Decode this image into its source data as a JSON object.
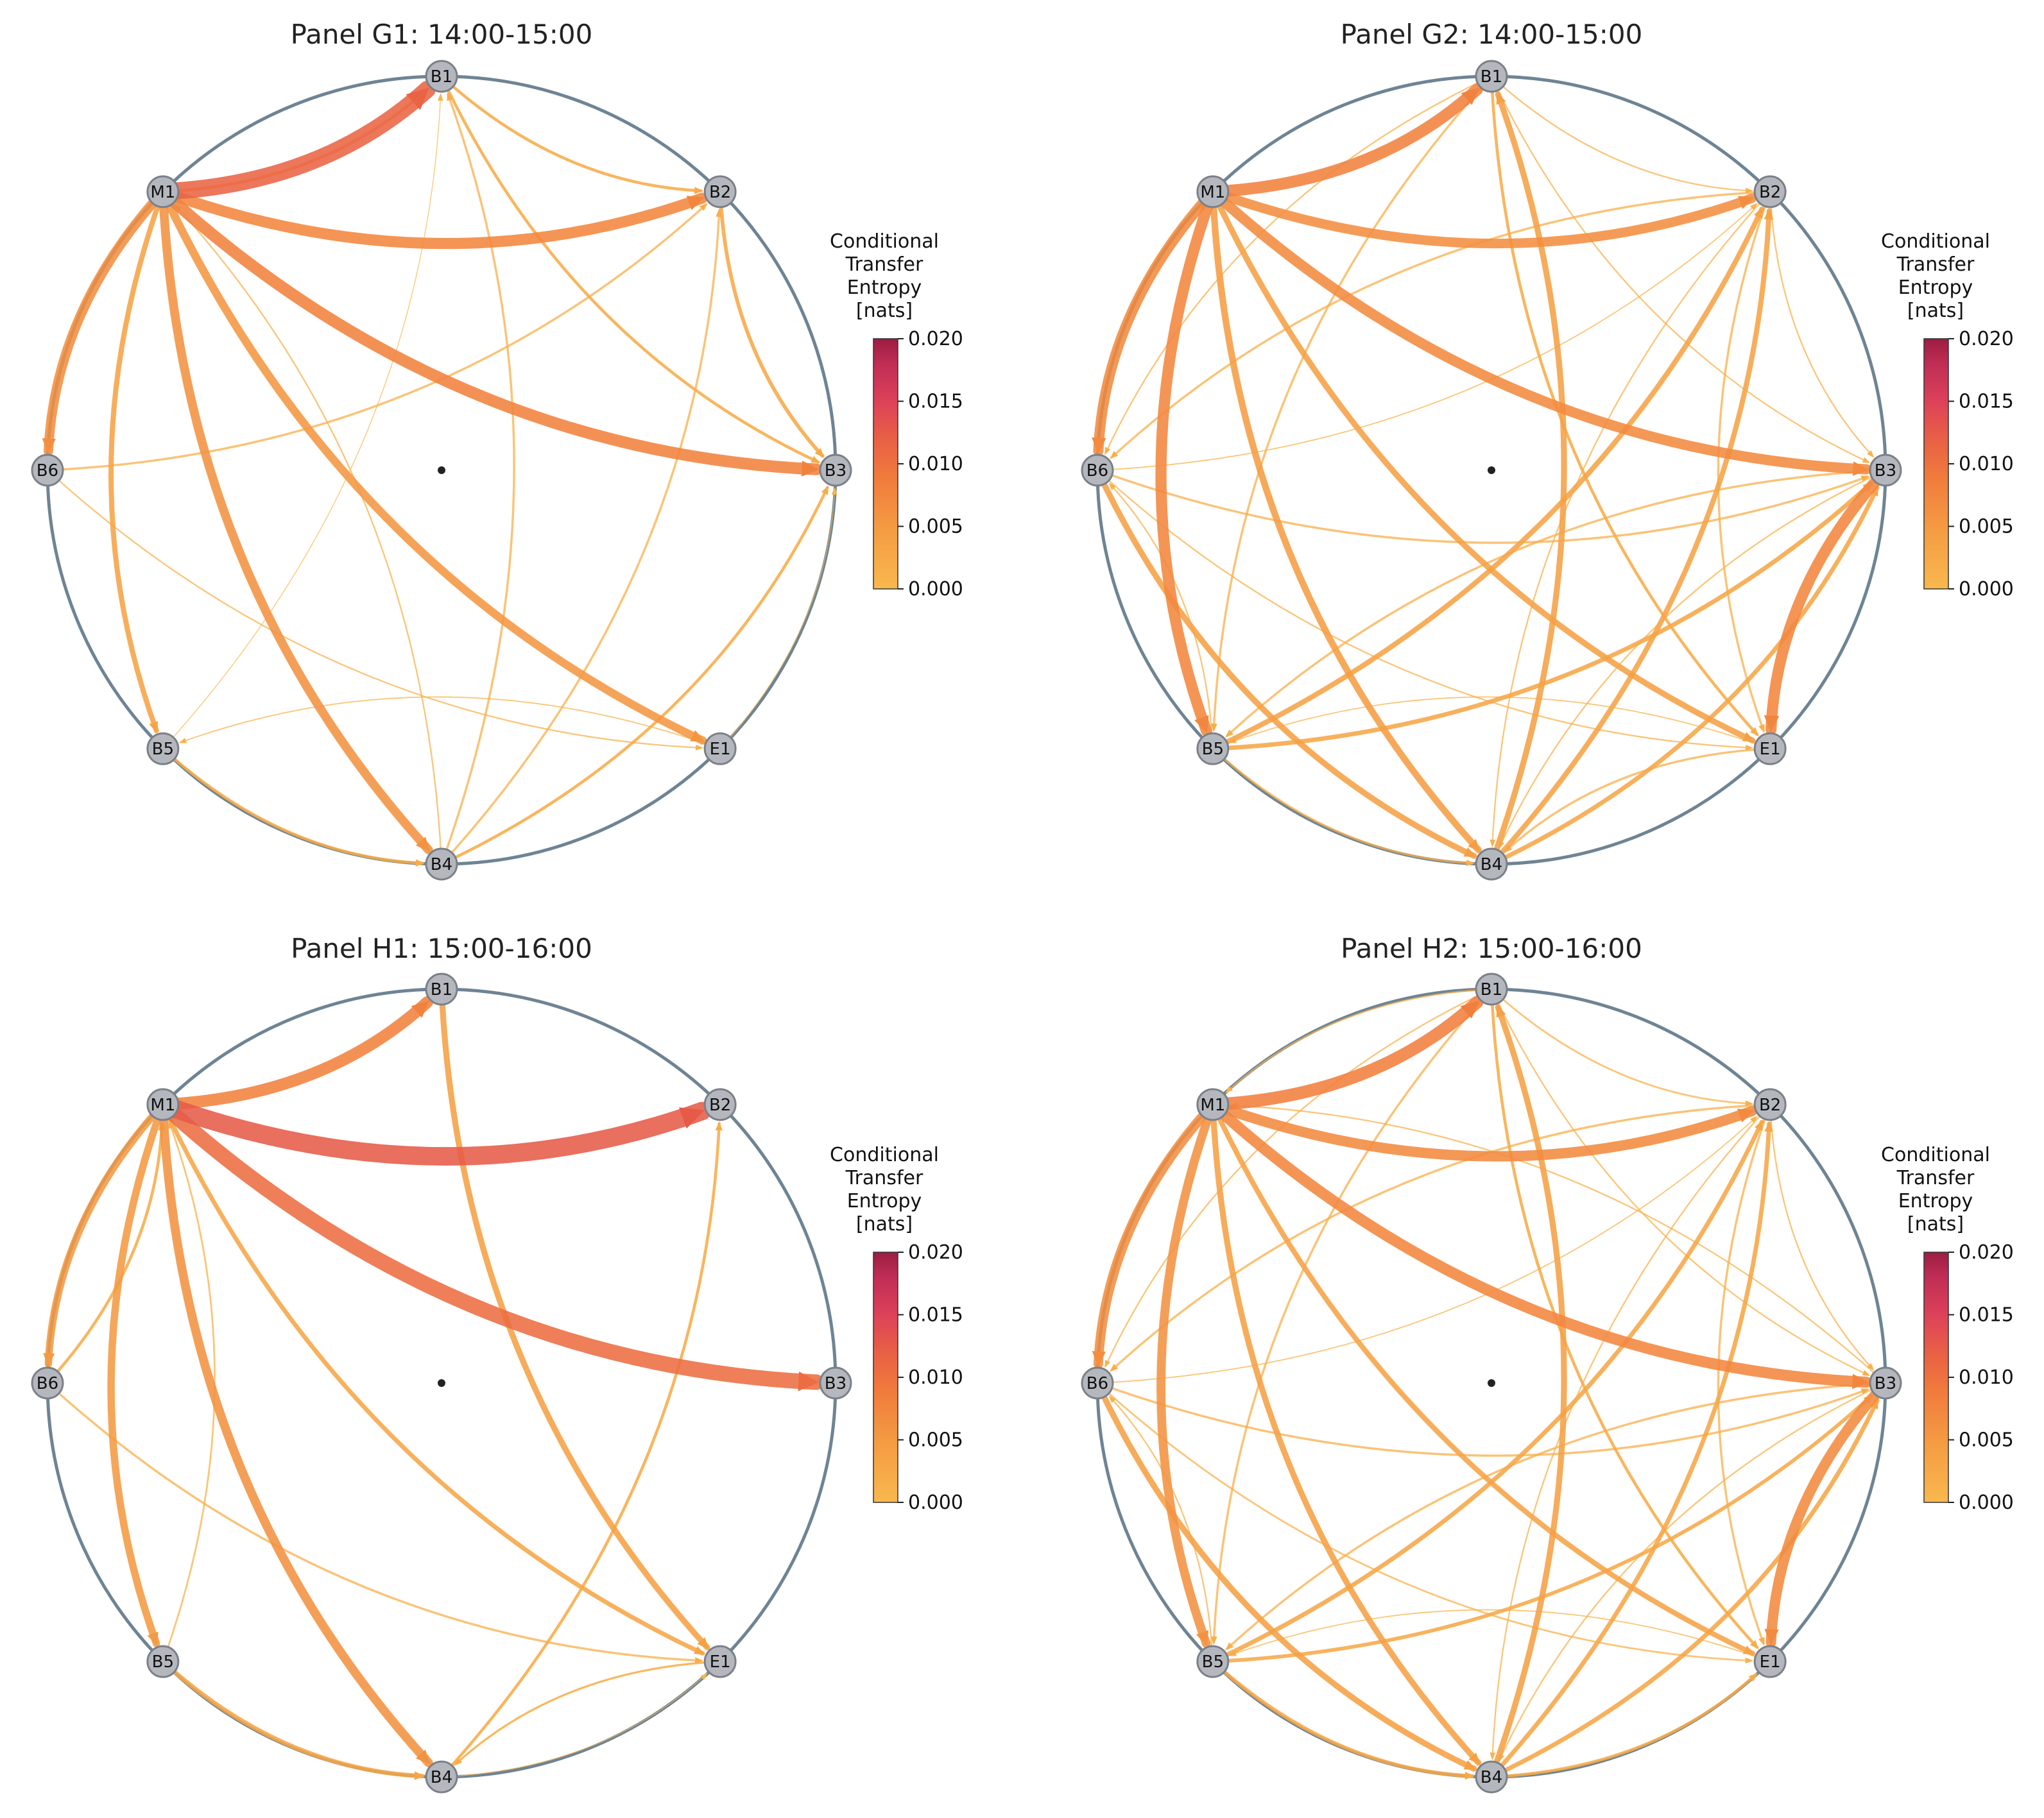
{
  "figure": {
    "colorbar": {
      "label_lines": [
        "Conditional",
        "Transfer",
        "Entropy",
        "[nats]"
      ],
      "ticks": [
        "0.000",
        "0.005",
        "0.010",
        "0.015",
        "0.020"
      ],
      "vmin": 0.0,
      "vmax": 0.02,
      "colors": [
        "#f9b84e",
        "#f07a3c",
        "#e25146",
        "#d83a61",
        "#9c1d42"
      ]
    },
    "node_labels": [
      "B1",
      "B2",
      "B3",
      "E1",
      "B4",
      "B5",
      "B6",
      "M1"
    ],
    "panels": [
      {
        "title": "Panel G1: 14:00-15:00",
        "edges": [
          [
            "M1",
            "B1",
            0.0115
          ],
          [
            "M1",
            "B2",
            0.0075
          ],
          [
            "M1",
            "B3",
            0.008
          ],
          [
            "M1",
            "B4",
            0.006
          ],
          [
            "M1",
            "E1",
            0.0055
          ],
          [
            "M1",
            "B6",
            0.0065
          ],
          [
            "M1",
            "B5",
            0.0035
          ],
          [
            "B1",
            "B2",
            0.002
          ],
          [
            "B1",
            "B3",
            0.002
          ],
          [
            "B2",
            "B3",
            0.0025
          ],
          [
            "M1",
            "B1",
            0.002
          ],
          [
            "B4",
            "B1",
            0.0015
          ],
          [
            "B4",
            "B2",
            0.0015
          ],
          [
            "B4",
            "B3",
            0.002
          ],
          [
            "B5",
            "B4",
            0.002
          ],
          [
            "B6",
            "B2",
            0.0015
          ],
          [
            "B6",
            "E1",
            0.001
          ],
          [
            "E1",
            "B5",
            0.0008
          ],
          [
            "B5",
            "B1",
            0.0006
          ],
          [
            "E1",
            "B3",
            0.0006
          ],
          [
            "B4",
            "M1",
            0.001
          ]
        ]
      },
      {
        "title": "Panel G2: 14:00-15:00",
        "edges": [
          [
            "M1",
            "B1",
            0.008
          ],
          [
            "M1",
            "B2",
            0.0065
          ],
          [
            "M1",
            "B3",
            0.007
          ],
          [
            "M1",
            "B6",
            0.007
          ],
          [
            "M1",
            "B5",
            0.0075
          ],
          [
            "B3",
            "E1",
            0.0075
          ],
          [
            "M1",
            "B4",
            0.0045
          ],
          [
            "M1",
            "E1",
            0.004
          ],
          [
            "B6",
            "B4",
            0.004
          ],
          [
            "B5",
            "B2",
            0.0035
          ],
          [
            "B4",
            "B1",
            0.004
          ],
          [
            "B4",
            "B2",
            0.0035
          ],
          [
            "B4",
            "B3",
            0.003
          ],
          [
            "B5",
            "B3",
            0.003
          ],
          [
            "B6",
            "B3",
            0.0015
          ],
          [
            "B1",
            "E1",
            0.002
          ],
          [
            "B1",
            "B5",
            0.0015
          ],
          [
            "B2",
            "B6",
            0.0015
          ],
          [
            "B2",
            "E1",
            0.0015
          ],
          [
            "B3",
            "B5",
            0.0015
          ],
          [
            "B6",
            "E1",
            0.001
          ],
          [
            "B1",
            "B2",
            0.001
          ],
          [
            "B1",
            "B3",
            0.001
          ],
          [
            "B2",
            "B3",
            0.001
          ],
          [
            "E1",
            "B4",
            0.0015
          ],
          [
            "B5",
            "B4",
            0.0015
          ],
          [
            "B5",
            "B6",
            0.001
          ],
          [
            "B1",
            "B6",
            0.001
          ],
          [
            "E1",
            "B5",
            0.0008
          ],
          [
            "B6",
            "B2",
            0.0008
          ],
          [
            "B3",
            "B4",
            0.001
          ],
          [
            "B2",
            "B4",
            0.001
          ]
        ]
      },
      {
        "title": "Panel H1: 15:00-16:00",
        "edges": [
          [
            "M1",
            "B2",
            0.0125
          ],
          [
            "M1",
            "B3",
            0.0105
          ],
          [
            "M1",
            "B1",
            0.008
          ],
          [
            "M1",
            "B4",
            0.006
          ],
          [
            "M1",
            "B5",
            0.005
          ],
          [
            "M1",
            "B6",
            0.005
          ],
          [
            "B1",
            "E1",
            0.004
          ],
          [
            "M1",
            "E1",
            0.003
          ],
          [
            "B4",
            "B2",
            0.002
          ],
          [
            "B5",
            "B4",
            0.003
          ],
          [
            "B6",
            "E1",
            0.0015
          ],
          [
            "E1",
            "B4",
            0.0015
          ],
          [
            "B6",
            "M1",
            0.002
          ],
          [
            "B5",
            "M1",
            0.0012
          ],
          [
            "E1",
            "B4",
            0.0008
          ],
          [
            "B4",
            "E1",
            0.0006
          ]
        ]
      },
      {
        "title": "Panel H2: 15:00-16:00",
        "edges": [
          [
            "M1",
            "B1",
            0.0085
          ],
          [
            "M1",
            "B2",
            0.007
          ],
          [
            "M1",
            "B3",
            0.0075
          ],
          [
            "M1",
            "B6",
            0.0065
          ],
          [
            "M1",
            "B5",
            0.006
          ],
          [
            "B3",
            "E1",
            0.007
          ],
          [
            "M1",
            "B4",
            0.004
          ],
          [
            "M1",
            "E1",
            0.0035
          ],
          [
            "B6",
            "B4",
            0.004
          ],
          [
            "B5",
            "B2",
            0.003
          ],
          [
            "B4",
            "B1",
            0.004
          ],
          [
            "B4",
            "B2",
            0.003
          ],
          [
            "B4",
            "B3",
            0.003
          ],
          [
            "B5",
            "B3",
            0.0025
          ],
          [
            "B6",
            "B3",
            0.0015
          ],
          [
            "B1",
            "E1",
            0.002
          ],
          [
            "B5",
            "B4",
            0.0025
          ],
          [
            "B4",
            "E1",
            0.002
          ],
          [
            "B1",
            "B5",
            0.0015
          ],
          [
            "B2",
            "B6",
            0.0015
          ],
          [
            "B2",
            "E1",
            0.0015
          ],
          [
            "B3",
            "B5",
            0.0015
          ],
          [
            "B6",
            "E1",
            0.0012
          ],
          [
            "B1",
            "B2",
            0.0012
          ],
          [
            "B1",
            "B3",
            0.001
          ],
          [
            "B2",
            "B3",
            0.001
          ],
          [
            "B5",
            "B6",
            0.001
          ],
          [
            "B1",
            "B6",
            0.001
          ],
          [
            "E1",
            "B5",
            0.0008
          ],
          [
            "B6",
            "B2",
            0.0008
          ],
          [
            "B3",
            "B4",
            0.001
          ],
          [
            "B2",
            "B4",
            0.001
          ],
          [
            "B1",
            "M1",
            0.001
          ],
          [
            "B3",
            "M1",
            0.001
          ]
        ]
      }
    ]
  }
}
